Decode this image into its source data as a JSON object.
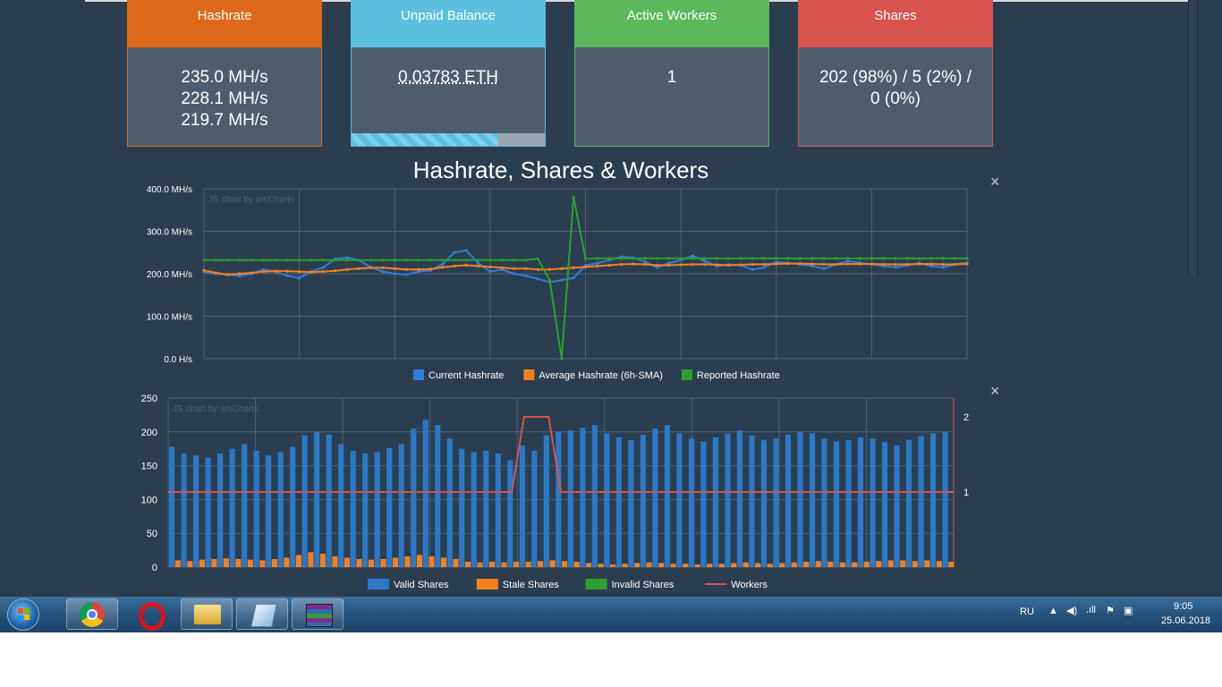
{
  "cards": {
    "hashrate": {
      "title": "Hashrate",
      "values": [
        "235.0 MH/s",
        "228.1 MH/s",
        "219.7 MH/s"
      ]
    },
    "balance": {
      "title": "Unpaid Balance",
      "value": "0.03783 ETH",
      "progress": 0.76
    },
    "workers": {
      "title": "Active Workers",
      "value": "1"
    },
    "shares": {
      "title": "Shares",
      "value": "202 (98%) / 5 (2%) / 0 (0%)"
    }
  },
  "section_title": "Hashrate, Shares & Workers",
  "close_glyph": "×",
  "colors": {
    "current": "#2f7ed8",
    "average": "#f7801e",
    "reported": "#2ca02c",
    "valid": "#2a78c8",
    "stale": "#f7801e",
    "invalid": "#2ca02c",
    "workers": "#d9534f",
    "grid": "#4f6172"
  },
  "chart_data": [
    {
      "type": "line",
      "credit": "JS chart by amCharts",
      "y_ticks": [
        "0.0 H/s",
        "100.0 MH/s",
        "200.0 MH/s",
        "300.0 MH/s",
        "400.0 MH/s"
      ],
      "ylim": [
        0,
        400
      ],
      "legend": [
        "Current Hashrate",
        "Average Hashrate (6h-SMA)",
        "Reported Hashrate"
      ],
      "series": [
        {
          "name": "Current Hashrate",
          "values": [
            205,
            200,
            198,
            195,
            200,
            210,
            205,
            195,
            190,
            205,
            215,
            235,
            238,
            232,
            215,
            205,
            200,
            198,
            205,
            208,
            222,
            250,
            255,
            225,
            205,
            210,
            200,
            195,
            188,
            180,
            185,
            190,
            220,
            225,
            232,
            240,
            238,
            228,
            215,
            225,
            232,
            242,
            230,
            218,
            222,
            220,
            210,
            215,
            228,
            225,
            222,
            218,
            212,
            222,
            230,
            226,
            222,
            218,
            215,
            220,
            225,
            218,
            215,
            222,
            226
          ]
        },
        {
          "name": "Average Hashrate (6h-SMA)",
          "values": [
            208,
            202,
            198,
            200,
            202,
            205,
            206,
            206,
            205,
            204,
            205,
            207,
            210,
            212,
            214,
            214,
            212,
            210,
            210,
            211,
            215,
            218,
            220,
            218,
            216,
            214,
            212,
            212,
            210,
            210,
            212,
            214,
            216,
            218,
            220,
            222,
            223,
            222,
            220,
            220,
            221,
            222,
            222,
            221,
            220,
            221,
            222,
            222,
            223,
            224,
            224,
            223,
            222,
            222,
            223,
            223,
            223,
            222,
            222,
            222,
            223,
            223,
            222,
            222,
            223
          ]
        },
        {
          "name": "Reported Hashrate",
          "values": [
            232,
            232,
            232,
            232,
            232,
            232,
            232,
            232,
            232,
            232,
            232,
            232,
            232,
            232,
            232,
            232,
            232,
            232,
            232,
            232,
            232,
            232,
            232,
            232,
            232,
            232,
            232,
            232,
            235,
            185,
            0,
            380,
            235,
            236,
            236,
            236,
            236,
            236,
            236,
            236,
            236,
            236,
            236,
            236,
            236,
            236,
            236,
            236,
            236,
            236,
            236,
            236,
            236,
            236,
            236,
            236,
            236,
            236,
            236,
            236,
            236,
            236,
            236,
            236,
            236
          ]
        }
      ]
    },
    {
      "type": "bar",
      "credit": "JS chart by amCharts",
      "y_ticks": [
        "0",
        "50",
        "100",
        "150",
        "200",
        "250"
      ],
      "ylim": [
        0,
        250
      ],
      "y2_ticks": [
        "1",
        "2"
      ],
      "y2lim": [
        0,
        2.25
      ],
      "legend": [
        "Valid Shares",
        "Stale Shares",
        "Invalid Shares",
        "Workers"
      ],
      "series": [
        {
          "name": "Valid Shares",
          "values": [
            178,
            168,
            165,
            162,
            168,
            175,
            182,
            172,
            165,
            170,
            178,
            195,
            200,
            196,
            182,
            172,
            168,
            170,
            176,
            182,
            205,
            218,
            210,
            190,
            175,
            170,
            172,
            168,
            158,
            180,
            172,
            195,
            200,
            202,
            206,
            210,
            198,
            192,
            188,
            196,
            205,
            210,
            198,
            190,
            186,
            192,
            198,
            202,
            195,
            188,
            190,
            196,
            200,
            198,
            190,
            186,
            188,
            192,
            190,
            185,
            180,
            188,
            194,
            198,
            200
          ]
        },
        {
          "name": "Stale Shares",
          "values": [
            10,
            9,
            11,
            12,
            13,
            12,
            11,
            10,
            12,
            14,
            18,
            22,
            20,
            16,
            14,
            12,
            11,
            12,
            14,
            16,
            18,
            16,
            14,
            12,
            8,
            7,
            8,
            7,
            8,
            8,
            9,
            10,
            9,
            8,
            6,
            5,
            4,
            5,
            6,
            7,
            6,
            5,
            5,
            4,
            5,
            5,
            6,
            7,
            6,
            5,
            6,
            7,
            8,
            9,
            8,
            7,
            7,
            8,
            9,
            10,
            10,
            9,
            10,
            9,
            8
          ]
        },
        {
          "name": "Invalid Shares",
          "values": [
            0,
            0,
            0,
            0,
            0,
            0,
            0,
            0,
            0,
            0,
            0,
            0,
            0,
            0,
            0,
            0,
            0,
            0,
            0,
            0,
            0,
            0,
            0,
            0,
            0,
            0,
            0,
            0,
            0,
            0,
            0,
            0,
            0,
            0,
            0,
            0,
            0,
            0,
            0,
            0,
            0,
            0,
            0,
            0,
            0,
            0,
            0,
            0,
            0,
            0,
            0,
            0,
            0,
            0,
            0,
            0,
            0,
            0,
            0,
            0,
            0,
            0,
            0,
            0,
            0
          ]
        },
        {
          "name": "Workers",
          "values": [
            1,
            1,
            1,
            1,
            1,
            1,
            1,
            1,
            1,
            1,
            1,
            1,
            1,
            1,
            1,
            1,
            1,
            1,
            1,
            1,
            1,
            1,
            1,
            1,
            1,
            1,
            1,
            1,
            1,
            2,
            2,
            2,
            1,
            1,
            1,
            1,
            1,
            1,
            1,
            1,
            1,
            1,
            1,
            1,
            1,
            1,
            1,
            1,
            1,
            1,
            1,
            1,
            1,
            1,
            1,
            1,
            1,
            1,
            1,
            1,
            1,
            1,
            1,
            1,
            1
          ]
        }
      ]
    }
  ],
  "taskbar": {
    "apps": [
      "start-orb-icon",
      "chrome-icon",
      "opera-icon",
      "file-explorer-icon",
      "notepad-icon",
      "winrar-icon"
    ],
    "language": "RU",
    "time": "9:05",
    "date": "25.06.2018"
  }
}
